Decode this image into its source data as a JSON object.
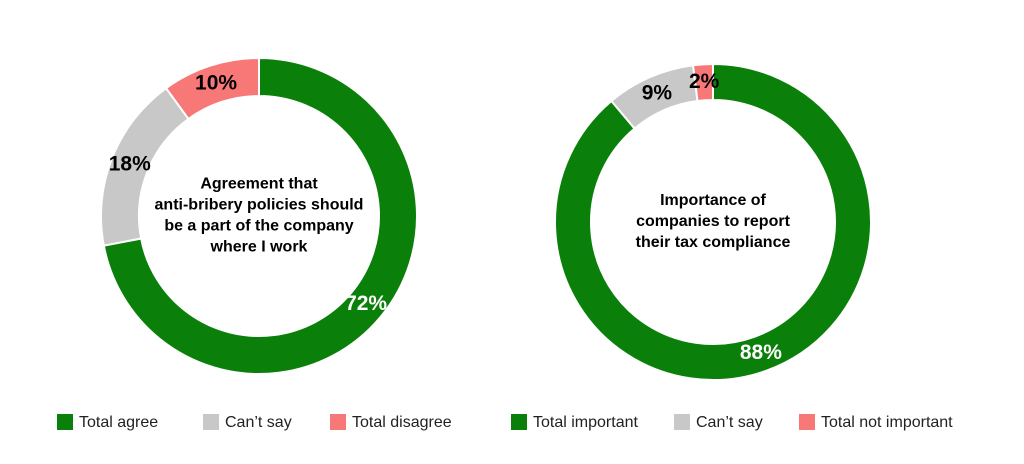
{
  "chart_data": [
    {
      "type": "donut",
      "title": [
        "Agreement that",
        "anti-bribery policies should",
        "be a part of the company",
        "where I work"
      ],
      "categories": [
        "Total agree",
        "Can’t say",
        "Total disagree"
      ],
      "values": [
        72,
        18,
        10
      ],
      "value_labels": [
        "72%",
        "18%",
        "10%"
      ],
      "colors": [
        "#0a800a",
        "#c8c8c8",
        "#f87878"
      ],
      "label_colors": [
        "#ffffff",
        "#000000",
        "#000000"
      ]
    },
    {
      "type": "donut",
      "title": [
        "Importance of",
        "companies to report",
        "their tax compliance"
      ],
      "categories": [
        "Total important",
        "Can’t say",
        "Total not important"
      ],
      "values": [
        88,
        9,
        2
      ],
      "value_labels": [
        "88%",
        "9%",
        "2%"
      ],
      "colors": [
        "#0a800a",
        "#c8c8c8",
        "#f87878"
      ],
      "label_colors": [
        "#ffffff",
        "#000000",
        "#000000"
      ]
    }
  ]
}
